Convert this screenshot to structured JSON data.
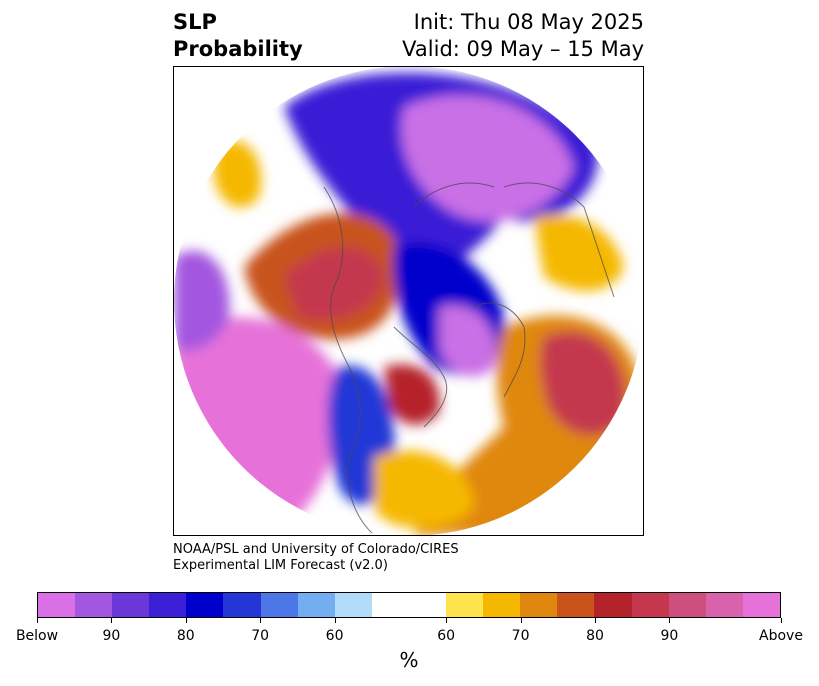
{
  "title": {
    "variable": "SLP",
    "product": "Probability",
    "init": "Init: Thu 08 May 2025",
    "valid": "Valid: 09 May – 15 May"
  },
  "credit": {
    "line1": "NOAA/PSL and University of Colorado/CIRES",
    "line2": "Experimental LIM Forecast (v2.0)"
  },
  "colorbar": {
    "colors": [
      "#db6fe6",
      "#a356e0",
      "#6a37d9",
      "#3a1fd6",
      "#0000cc",
      "#2437d6",
      "#4d76e6",
      "#72aef0",
      "#b0dcfa",
      "#ffffff",
      "#ffffff",
      "#ffe34d",
      "#f5b800",
      "#e0870f",
      "#c9531b",
      "#b5232a",
      "#c4374e",
      "#cc4f7e",
      "#d863ac",
      "#e672d9"
    ],
    "tick_labels": [
      "Below",
      "90",
      "80",
      "70",
      "60",
      "60",
      "70",
      "80",
      "90",
      "Above"
    ],
    "unit": "%"
  }
}
